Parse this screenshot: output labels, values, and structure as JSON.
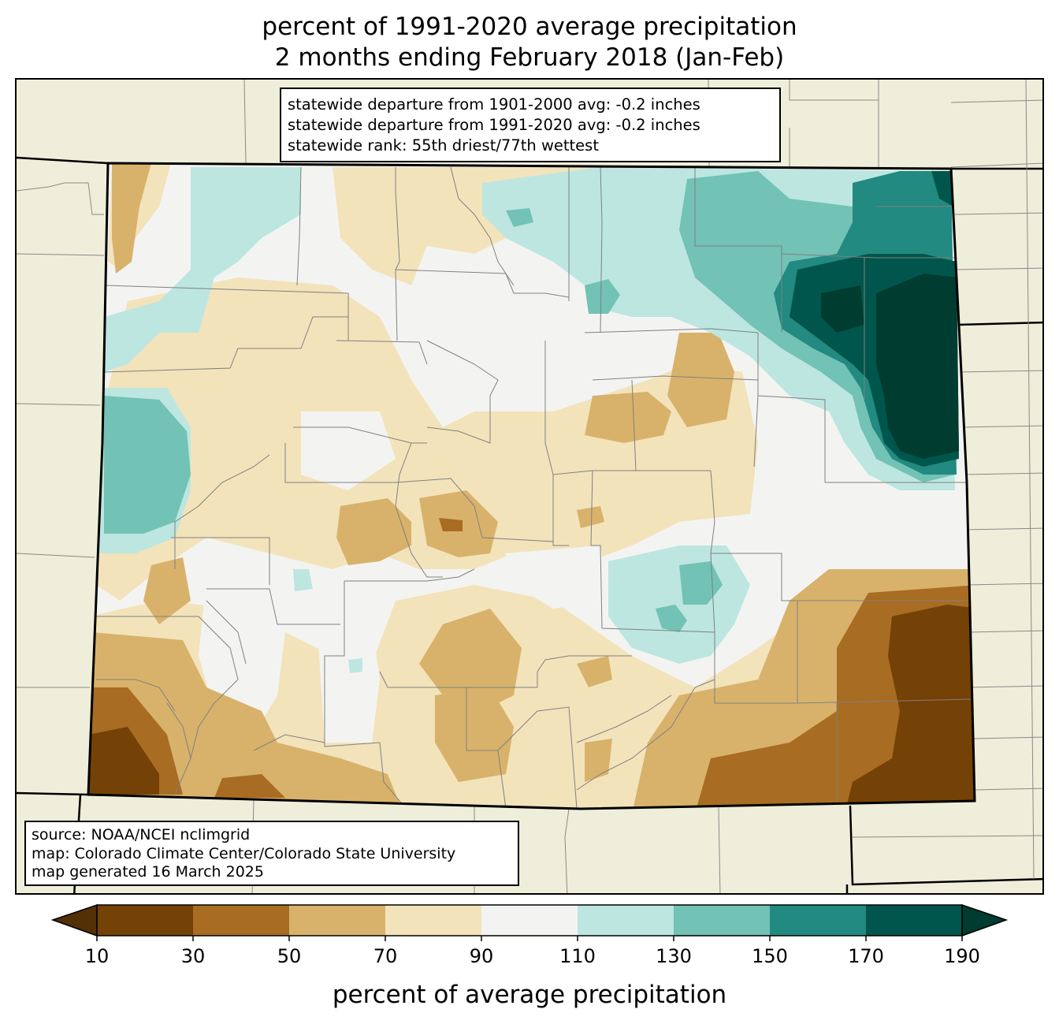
{
  "title": {
    "line1": "percent of 1991-2020 average precipitation",
    "line2": "2 months ending February 2018 (Jan-Feb)"
  },
  "stats": {
    "line1": "statewide departure from 1901-2000 avg: -0.2 inches",
    "line2": "statewide departure from 1991-2020 avg: -0.2 inches",
    "line3": "statewide rank: 55th driest/77th wettest"
  },
  "source": {
    "line1": "source: NOAA/NCEI nclimgrid",
    "line2": "map: Colorado Climate Center/Colorado State University",
    "line3": "map generated 16 March 2025"
  },
  "colorbar": {
    "label": "percent of average precipitation",
    "ticks": [
      "10",
      "30",
      "50",
      "70",
      "90",
      "110",
      "130",
      "150",
      "170",
      "190"
    ],
    "under_color": "#543005",
    "over_color": "#003c30",
    "colors": [
      "#744107",
      "#a86c22",
      "#d8b26b",
      "#f3e3bb",
      "#f3f4f2",
      "#bde6e0",
      "#72c2b5",
      "#228a80",
      "#00564c"
    ]
  },
  "map": {
    "background_color": "#efeeda",
    "state_border_color": "#000000",
    "county_line_color": "#808080"
  }
}
